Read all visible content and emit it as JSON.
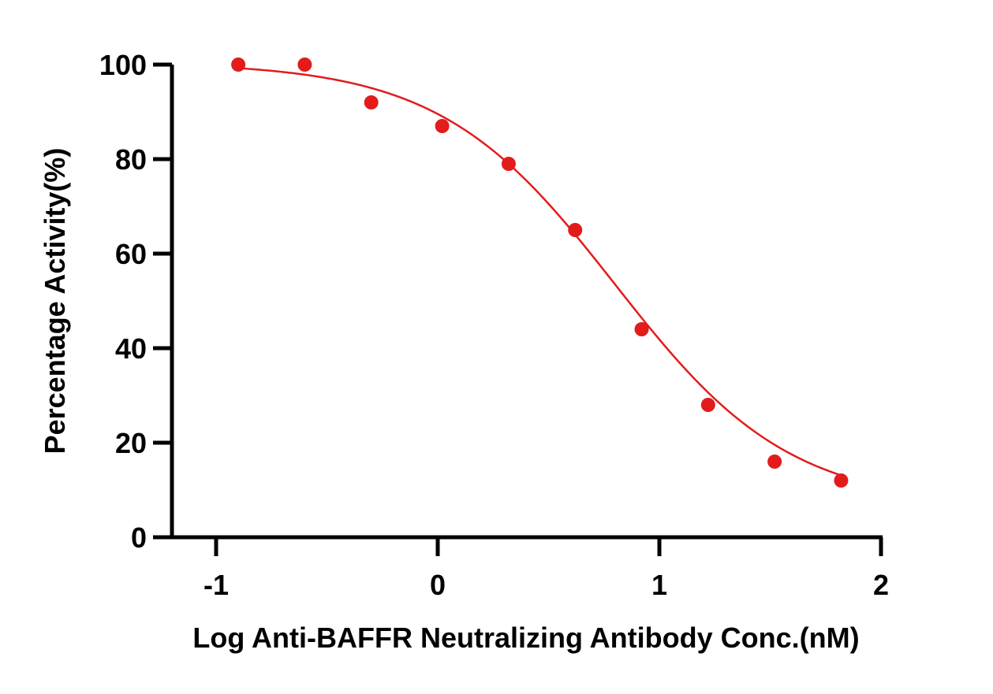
{
  "chart_data": {
    "type": "scatter",
    "title": "",
    "xlabel": "Log Anti-BAFFR Neutralizing Antibody Conc.(nM)",
    "ylabel": "Percentage Activity(%)",
    "xlim": [
      -1.2,
      2
    ],
    "ylim": [
      0,
      100
    ],
    "xticks": [
      -1,
      0,
      1,
      2
    ],
    "xtick_labels": [
      "-1",
      "0",
      "1",
      "2"
    ],
    "yticks": [
      0,
      20,
      40,
      60,
      80,
      100
    ],
    "ytick_labels": [
      "0",
      "20",
      "40",
      "60",
      "80",
      "100"
    ],
    "grid": false,
    "legend": "none",
    "points": {
      "x": [
        -0.9,
        -0.6,
        -0.3,
        0.02,
        0.32,
        0.62,
        0.92,
        1.22,
        1.52,
        1.82
      ],
      "y": [
        100,
        100,
        92,
        87,
        79,
        65,
        44,
        28,
        16,
        12
      ]
    },
    "fit_curve": {
      "model": "four-parameter logistic",
      "top": 100.5,
      "bottom": 6.5,
      "log_ic50": 0.8,
      "hill_slope": 1.1
    },
    "color": "#e31b1b"
  }
}
